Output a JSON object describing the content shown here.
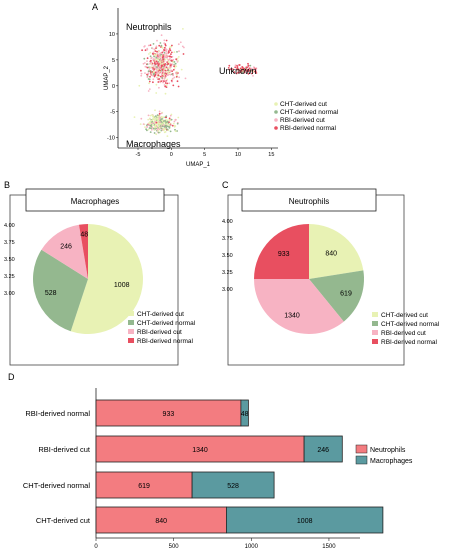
{
  "colors": {
    "cht_cut": "#e8f2b4",
    "cht_normal": "#94b88f",
    "rbi_cut": "#f7b3c3",
    "rbi_normal": "#e84f60",
    "neutrophils": "#f37c80",
    "macrophages": "#5b9aa0"
  },
  "panels": {
    "a": "A",
    "b": "B",
    "c": "C",
    "d": "D"
  },
  "chart_data": [
    {
      "type": "scatter",
      "panel": "A",
      "xlabel": "UMAP_1",
      "ylabel": "UMAP_2",
      "xlim": [
        -8,
        16
      ],
      "ylim": [
        -12,
        15
      ],
      "x_ticks": [
        -5,
        0,
        5,
        10,
        15
      ],
      "y_ticks": [
        -10,
        -5,
        0,
        5,
        10
      ],
      "grid": false,
      "cluster_labels": [
        {
          "text": "Neutrophils",
          "x": -5.5,
          "y": 10.5
        },
        {
          "text": "Unknown",
          "x": 11.5,
          "y": 4.2
        },
        {
          "text": "Macrophages",
          "x": -4.5,
          "y": -11.5
        }
      ],
      "clusters": [
        {
          "name": "Neutrophils",
          "cx": -1.5,
          "cy": 4.0,
          "sx": 2.4,
          "sy": 4.0,
          "n": 520
        },
        {
          "name": "Macrophages",
          "cx": -1.8,
          "cy": -7.2,
          "sx": 2.2,
          "sy": 1.7,
          "n": 330
        },
        {
          "name": "Unknown",
          "cx": 10.8,
          "cy": 3.2,
          "sx": 1.9,
          "sy": 1.0,
          "n": 90
        }
      ],
      "legend_placement": "right",
      "series": [
        {
          "name": "CHT-derived cut",
          "color": "#e8f2b4"
        },
        {
          "name": "CHT-derived normal",
          "color": "#94b88f"
        },
        {
          "name": "RBI-derived cut",
          "color": "#f7b3c3"
        },
        {
          "name": "RBI-derived normal",
          "color": "#e84f60"
        }
      ]
    },
    {
      "type": "pie",
      "panel": "B",
      "title": "Macrophages",
      "categories": [
        "CHT-derived cut",
        "CHT-derived  normal",
        "RBI-derived cut",
        "RBI-derived  normal"
      ],
      "values": [
        1008,
        528,
        246,
        48
      ],
      "value_labels": [
        "1008",
        "528",
        "246",
        "48"
      ],
      "colors": [
        "#e8f2b4",
        "#94b88f",
        "#f7b3c3",
        "#e84f60"
      ],
      "y_ticks": [
        "4.00",
        "3.75",
        "3.50",
        "3.25",
        "3.00"
      ],
      "legend_placement": "bottom-right"
    },
    {
      "type": "pie",
      "panel": "C",
      "title": "Neutrophils",
      "categories": [
        "CHT-derived cut",
        "CHT-derived  normal",
        "RBI-derived cut",
        "RBI-derived  normal"
      ],
      "values": [
        840,
        619,
        1340,
        933
      ],
      "value_labels": [
        "840",
        "619",
        "1340",
        "933"
      ],
      "colors": [
        "#e8f2b4",
        "#94b88f",
        "#f7b3c3",
        "#e84f60"
      ],
      "y_ticks": [
        "4.00",
        "3.75",
        "3.50",
        "3.25",
        "3.00"
      ],
      "legend_placement": "bottom-right"
    },
    {
      "type": "bar",
      "orientation": "horizontal",
      "stacked": true,
      "panel": "D",
      "categories": [
        "RBI-derived normal",
        "RBI-derived cut",
        "CHT-derived normal",
        "CHT-derived cut"
      ],
      "series": [
        {
          "name": "Neutrophils",
          "values": [
            933,
            1340,
            619,
            840
          ],
          "labels": [
            "933",
            "1340",
            "619",
            "840"
          ],
          "color": "#f37c80"
        },
        {
          "name": "Macrophages",
          "values": [
            48,
            246,
            528,
            1008
          ],
          "labels": [
            "48",
            "246",
            "528",
            "1008"
          ],
          "color": "#5b9aa0"
        }
      ],
      "xlim": [
        0,
        1700
      ],
      "x_ticks": [
        0,
        500,
        1000,
        1500
      ],
      "legend_placement": "right"
    }
  ]
}
